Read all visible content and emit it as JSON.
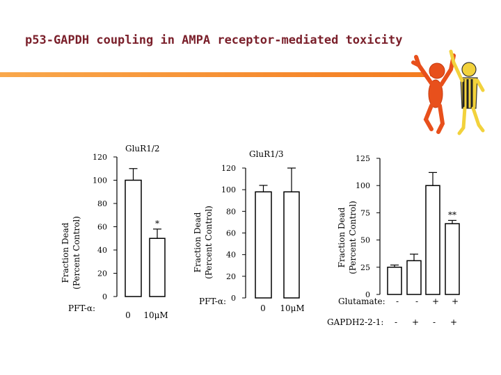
{
  "slide": {
    "title": "p53-GAPDH coupling in AMPA receptor-mediated toxicity",
    "title_color": "#7a1f2a",
    "accent_color": "#f47c20",
    "decoration": "dancing-figures-clipart"
  },
  "chart_data": [
    {
      "type": "bar",
      "title": "GluR1/2",
      "ylabel": "Fraction Dead (Percent Control)",
      "ylim": [
        0,
        120
      ],
      "yticks": [
        0,
        20,
        40,
        60,
        80,
        100,
        120
      ],
      "row_label": "PFT-α:",
      "categories": [
        "0",
        "10μM"
      ],
      "values": [
        100,
        50
      ],
      "errors": [
        10,
        8
      ],
      "annotations": [
        "",
        "*"
      ]
    },
    {
      "type": "bar",
      "title": "GluR1/3",
      "ylabel": "Fraction Dead (Percent Control)",
      "ylim": [
        0,
        120
      ],
      "yticks": [
        0,
        20,
        40,
        60,
        80,
        100,
        120
      ],
      "row_label": "PFT-α:",
      "categories": [
        "0",
        "10μM"
      ],
      "values": [
        98,
        98
      ],
      "errors": [
        6,
        22
      ],
      "annotations": [
        "",
        ""
      ]
    },
    {
      "type": "bar",
      "title": "",
      "ylabel": "Fraction Dead (Percent Control)",
      "ylim": [
        0,
        125
      ],
      "yticks": [
        0,
        25,
        50,
        75,
        100,
        125
      ],
      "row_labels": [
        "Glutamate:",
        "GAPDH2-2-1:"
      ],
      "condition_rows": [
        [
          "-",
          "-",
          "+",
          "+"
        ],
        [
          "-",
          "+",
          "-",
          "+"
        ]
      ],
      "values": [
        25,
        31,
        100,
        65
      ],
      "errors": [
        2,
        6,
        12,
        3
      ],
      "annotations": [
        "",
        "",
        "",
        "**"
      ]
    }
  ]
}
